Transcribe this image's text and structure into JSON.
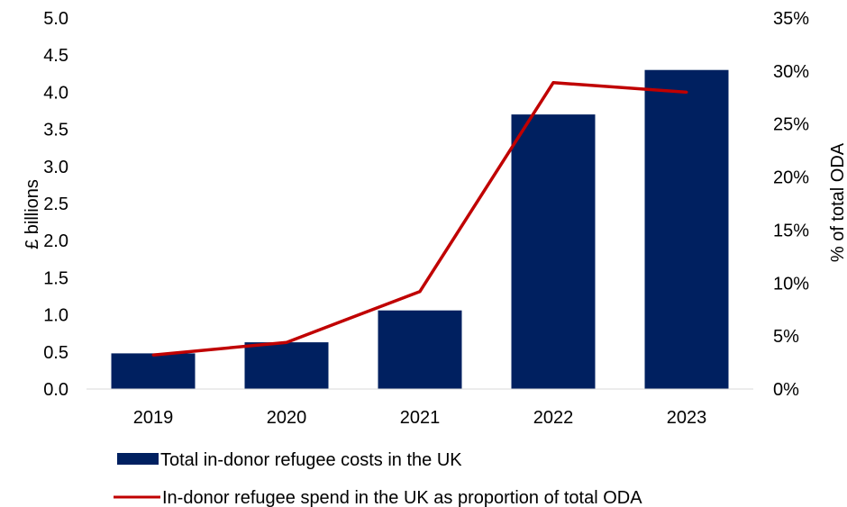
{
  "chart_data": {
    "type": "bar",
    "categories": [
      "2019",
      "2020",
      "2021",
      "2022",
      "2023"
    ],
    "series": [
      {
        "name": "Total in-donor refugee costs in the UK",
        "type": "bar",
        "axis": "left",
        "color": "#002060",
        "values": [
          0.48,
          0.63,
          1.06,
          3.7,
          4.3
        ]
      },
      {
        "name": "In-donor refugee spend in the UK as proportion of total ODA",
        "type": "line",
        "axis": "right",
        "color": "#C00000",
        "values": [
          3.2,
          4.4,
          9.2,
          28.9,
          28.0
        ]
      }
    ],
    "ylabel": "£ billions",
    "y2label": "% of total ODA",
    "ylim": [
      0,
      5
    ],
    "y2lim": [
      0,
      35
    ],
    "yticks": [
      "0.0",
      "0.5",
      "1.0",
      "1.5",
      "2.0",
      "2.5",
      "3.0",
      "3.5",
      "4.0",
      "4.5",
      "5.0"
    ],
    "y2ticks": [
      "0%",
      "5%",
      "10%",
      "15%",
      "20%",
      "25%",
      "30%",
      "35%"
    ],
    "grid": false,
    "legend_position": "bottom"
  }
}
